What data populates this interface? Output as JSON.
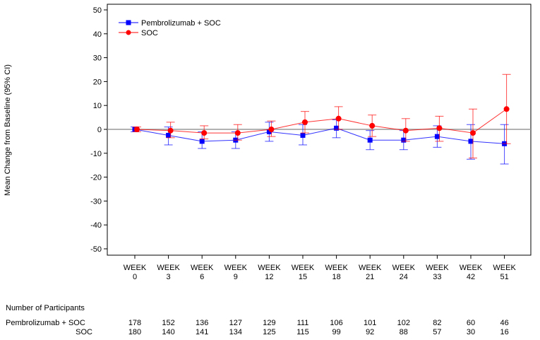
{
  "chart_data": {
    "type": "line",
    "ylabel": "Mean Change from Baseline (95% CI)",
    "ylim": [
      -50,
      50
    ],
    "yticks": [
      50,
      40,
      30,
      20,
      10,
      0,
      -10,
      -20,
      -30,
      -40,
      -50
    ],
    "categories": [
      [
        "WEEK",
        "0"
      ],
      [
        "WEEK",
        "3"
      ],
      [
        "WEEK",
        "6"
      ],
      [
        "WEEK",
        "9"
      ],
      [
        "WEEK",
        "12"
      ],
      [
        "WEEK",
        "15"
      ],
      [
        "WEEK",
        "18"
      ],
      [
        "WEEK",
        "21"
      ],
      [
        "WEEK",
        "24"
      ],
      [
        "WEEK",
        "33"
      ],
      [
        "WEEK",
        "42"
      ],
      [
        "WEEK",
        "51"
      ]
    ],
    "legend_position": "top-left",
    "series": [
      {
        "name": "Pembrolizumab + SOC",
        "color": "#0000ff",
        "marker": "square",
        "values": [
          0,
          -2.5,
          -5,
          -4.5,
          -1,
          -2.5,
          0.5,
          -4.5,
          -4.5,
          -3,
          -5,
          -6
        ],
        "lower": [
          -1,
          -6.5,
          -8,
          -8,
          -5,
          -6.5,
          -3.5,
          -8.5,
          -8.5,
          -7.5,
          -12.5,
          -14.5
        ],
        "upper": [
          1,
          1,
          -1,
          -1,
          3,
          2,
          4,
          -0.5,
          -0.5,
          1.5,
          2,
          2
        ]
      },
      {
        "name": "SOC",
        "color": "#ff0000",
        "marker": "circle",
        "values": [
          0,
          -0.5,
          -1.5,
          -1.5,
          0,
          3,
          4.5,
          1.5,
          -0.5,
          0.5,
          -1.5,
          8.5
        ],
        "lower": [
          -1,
          -3.5,
          -4,
          -4.5,
          -3,
          -1.5,
          0,
          -3,
          -5,
          -5,
          -12,
          -6
        ],
        "upper": [
          1,
          3,
          1.5,
          2,
          3.5,
          7.5,
          9.5,
          6,
          4.5,
          5.5,
          8.5,
          23
        ]
      }
    ],
    "participants": {
      "title": "Number of Participants",
      "rows": [
        {
          "label": "Pembrolizumab + SOC",
          "counts": [
            178,
            152,
            136,
            127,
            129,
            111,
            106,
            101,
            102,
            82,
            60,
            46
          ]
        },
        {
          "label": "SOC",
          "counts": [
            180,
            140,
            141,
            134,
            125,
            115,
            99,
            92,
            88,
            57,
            30,
            16
          ]
        }
      ]
    }
  }
}
